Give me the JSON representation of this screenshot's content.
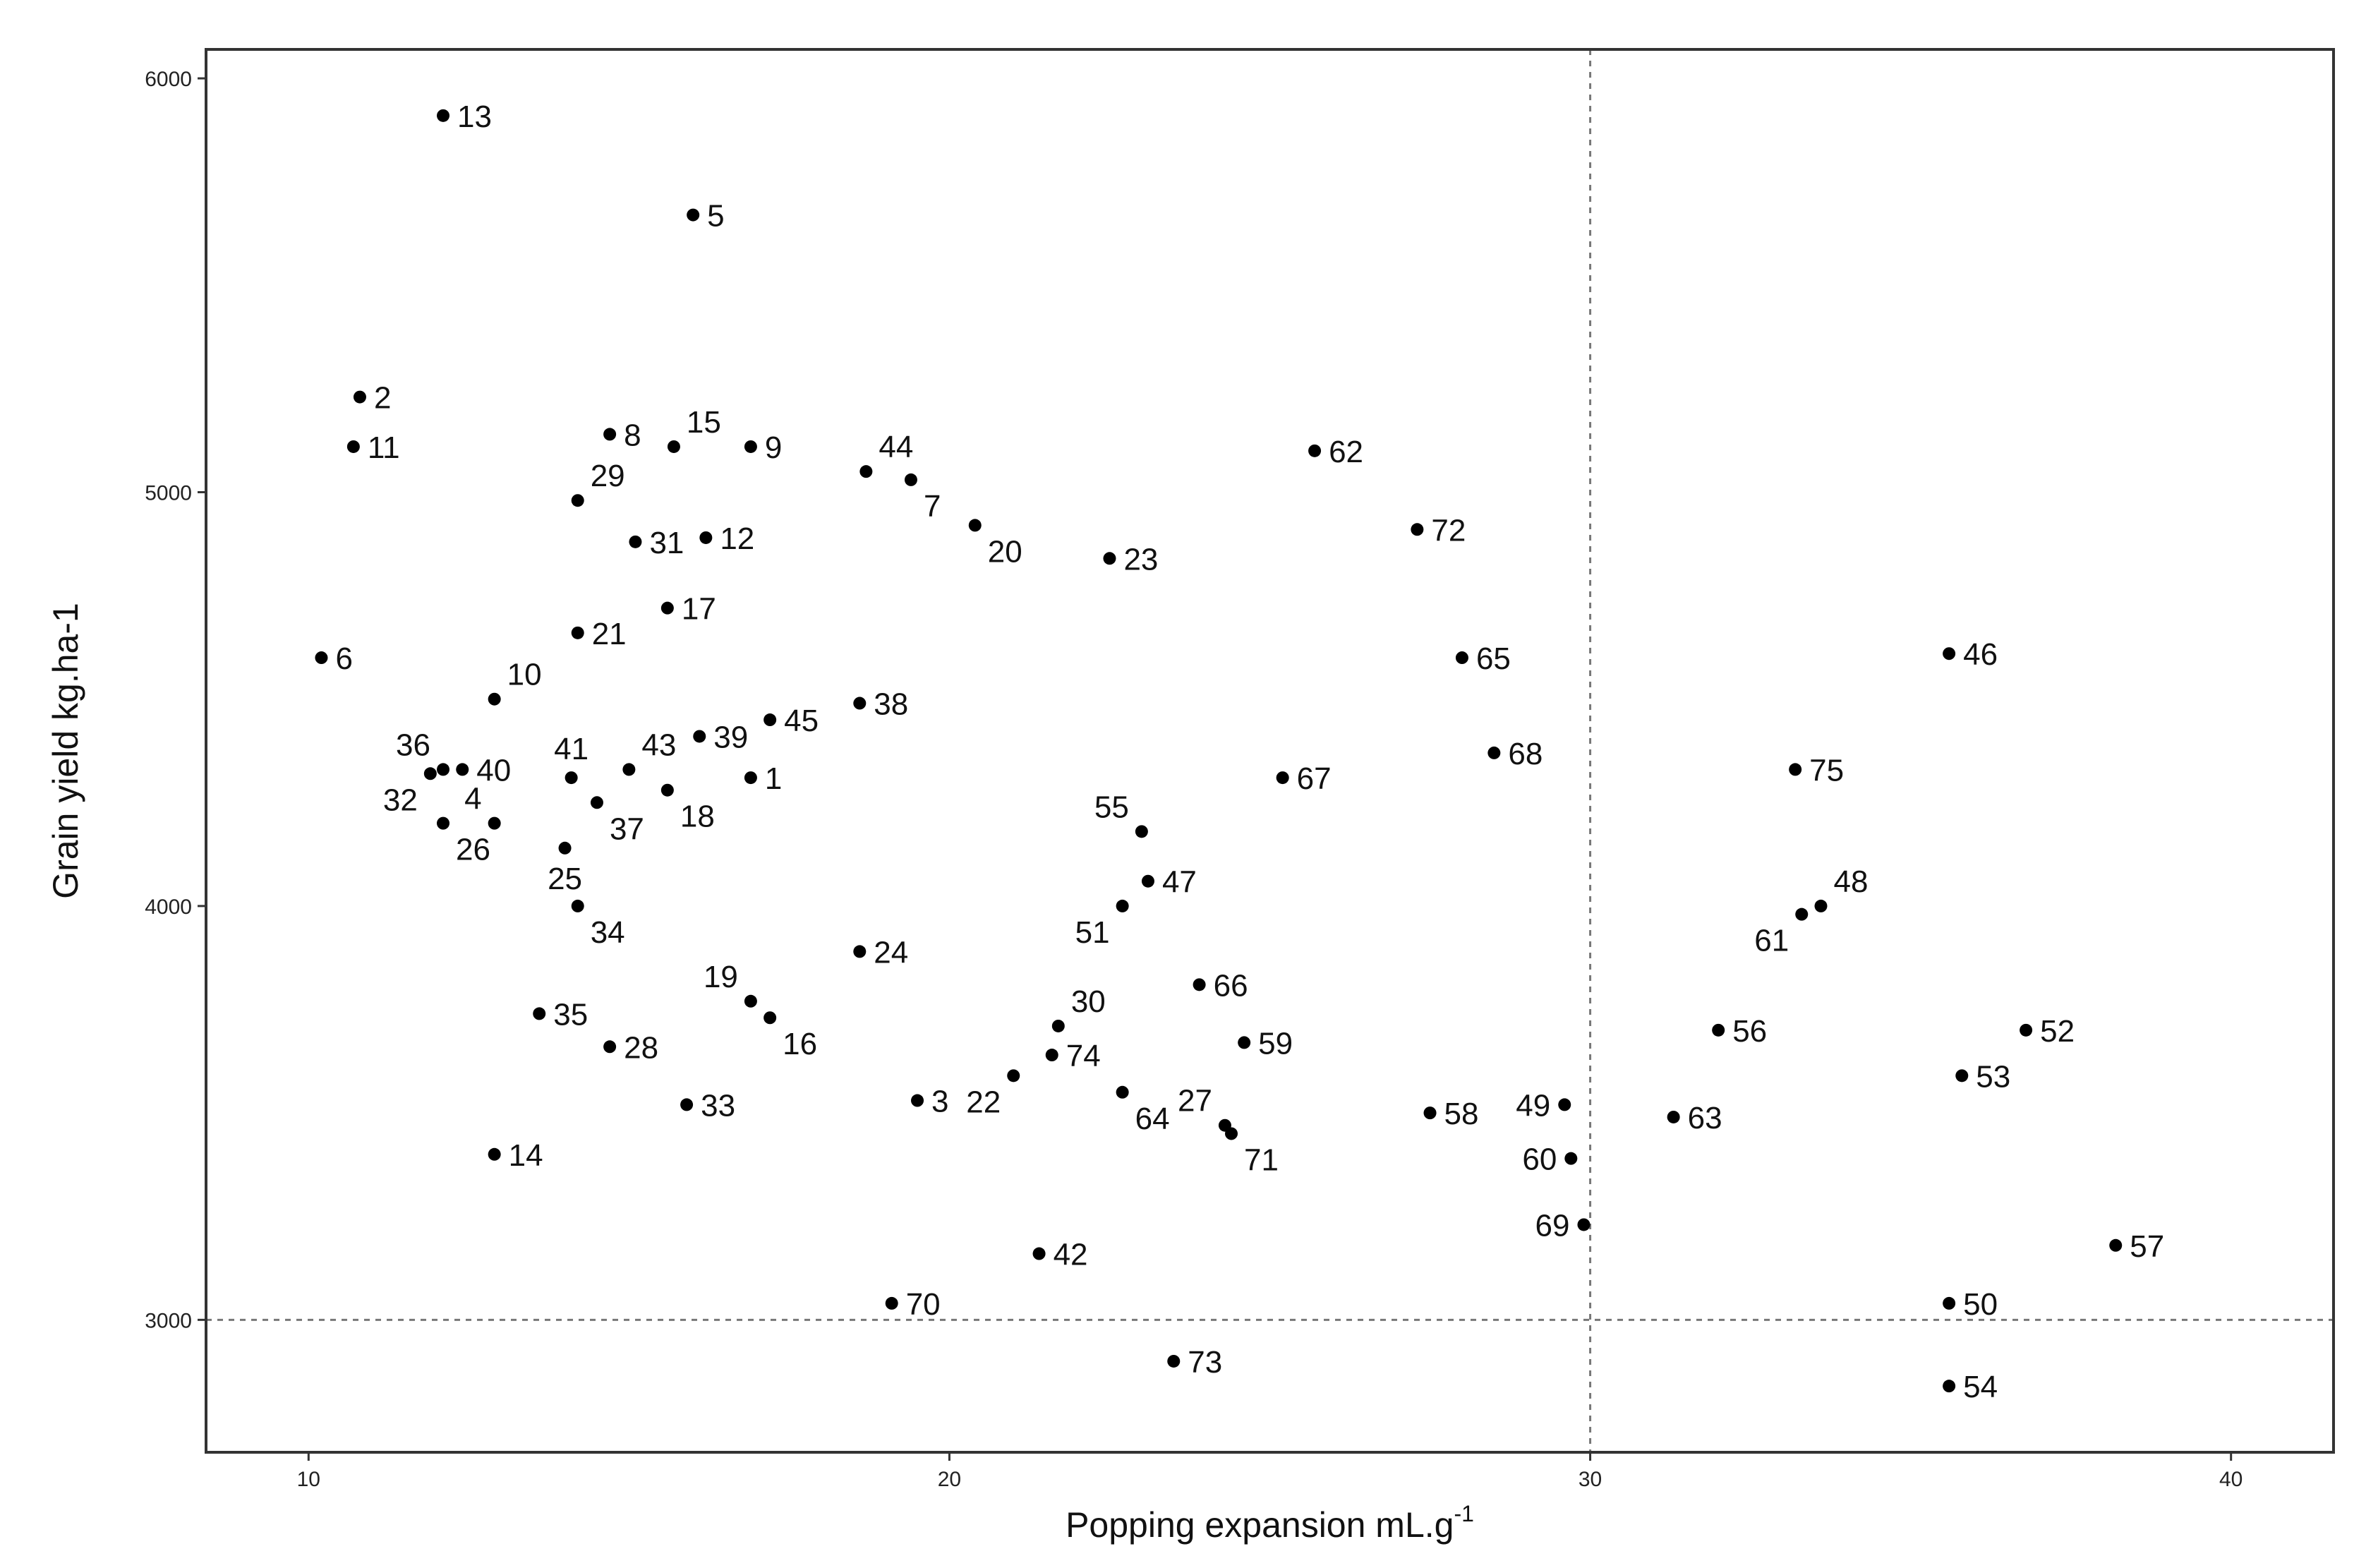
{
  "chart_data": {
    "type": "scatter",
    "xlabel": "Popping expansion mL.g",
    "xlabel_superscript": "-1",
    "ylabel": "Grain yield kg.ha-1",
    "xlim": [
      8.4,
      41.6
    ],
    "ylim": [
      2680,
      6070
    ],
    "xticks": [
      10,
      20,
      30,
      40
    ],
    "yticks": [
      3000,
      4000,
      5000,
      6000
    ],
    "reference_lines": {
      "x": 30,
      "y": 3000
    },
    "grid": false,
    "point_color": "#000000",
    "points": [
      {
        "label": "1",
        "x": 16.9,
        "y": 4310,
        "pos": "right"
      },
      {
        "label": "2",
        "x": 10.8,
        "y": 5230,
        "pos": "right"
      },
      {
        "label": "3",
        "x": 19.5,
        "y": 3530,
        "pos": "right"
      },
      {
        "label": "4",
        "x": 12.9,
        "y": 4200,
        "pos": "topleft"
      },
      {
        "label": "5",
        "x": 16.0,
        "y": 5670,
        "pos": "right"
      },
      {
        "label": "6",
        "x": 10.2,
        "y": 4600,
        "pos": "right"
      },
      {
        "label": "7",
        "x": 19.4,
        "y": 5030,
        "pos": "bottomright"
      },
      {
        "label": "8",
        "x": 14.7,
        "y": 5140,
        "pos": "right"
      },
      {
        "label": "9",
        "x": 16.9,
        "y": 5110,
        "pos": "right"
      },
      {
        "label": "10",
        "x": 12.9,
        "y": 4500,
        "pos": "topright"
      },
      {
        "label": "11",
        "x": 10.7,
        "y": 5110,
        "pos": "right"
      },
      {
        "label": "12",
        "x": 16.2,
        "y": 4890,
        "pos": "right"
      },
      {
        "label": "13",
        "x": 12.1,
        "y": 5910,
        "pos": "right"
      },
      {
        "label": "14",
        "x": 12.9,
        "y": 3400,
        "pos": "right"
      },
      {
        "label": "15",
        "x": 15.7,
        "y": 5110,
        "pos": "topright"
      },
      {
        "label": "16",
        "x": 17.2,
        "y": 3730,
        "pos": "bottomright"
      },
      {
        "label": "17",
        "x": 15.6,
        "y": 4720,
        "pos": "right"
      },
      {
        "label": "18",
        "x": 15.6,
        "y": 4280,
        "pos": "bottomright"
      },
      {
        "label": "19",
        "x": 16.9,
        "y": 3770,
        "pos": "topleft"
      },
      {
        "label": "20",
        "x": 20.4,
        "y": 4920,
        "pos": "bottomright"
      },
      {
        "label": "21",
        "x": 14.2,
        "y": 4660,
        "pos": "right"
      },
      {
        "label": "22",
        "x": 21.0,
        "y": 3590,
        "pos": "bottomleft"
      },
      {
        "label": "23",
        "x": 22.5,
        "y": 4840,
        "pos": "right"
      },
      {
        "label": "24",
        "x": 18.6,
        "y": 3890,
        "pos": "right"
      },
      {
        "label": "25",
        "x": 14.0,
        "y": 4140,
        "pos": "bottom"
      },
      {
        "label": "26",
        "x": 12.1,
        "y": 4200,
        "pos": "bottomright"
      },
      {
        "label": "27",
        "x": 24.3,
        "y": 3470,
        "pos": "topleft"
      },
      {
        "label": "28",
        "x": 14.7,
        "y": 3660,
        "pos": "right"
      },
      {
        "label": "29",
        "x": 14.2,
        "y": 4980,
        "pos": "topright"
      },
      {
        "label": "30",
        "x": 21.7,
        "y": 3710,
        "pos": "topright"
      },
      {
        "label": "31",
        "x": 15.1,
        "y": 4880,
        "pos": "right"
      },
      {
        "label": "32",
        "x": 11.9,
        "y": 4320,
        "pos": "bottomleft"
      },
      {
        "label": "33",
        "x": 15.9,
        "y": 3520,
        "pos": "right"
      },
      {
        "label": "34",
        "x": 14.2,
        "y": 4000,
        "pos": "bottomright"
      },
      {
        "label": "35",
        "x": 13.6,
        "y": 3740,
        "pos": "right"
      },
      {
        "label": "36",
        "x": 12.1,
        "y": 4330,
        "pos": "topleft"
      },
      {
        "label": "37",
        "x": 14.5,
        "y": 4250,
        "pos": "bottomright"
      },
      {
        "label": "38",
        "x": 18.6,
        "y": 4490,
        "pos": "right"
      },
      {
        "label": "39",
        "x": 16.1,
        "y": 4410,
        "pos": "right"
      },
      {
        "label": "40",
        "x": 12.4,
        "y": 4330,
        "pos": "right"
      },
      {
        "label": "41",
        "x": 14.1,
        "y": 4310,
        "pos": "top"
      },
      {
        "label": "42",
        "x": 21.4,
        "y": 3160,
        "pos": "right"
      },
      {
        "label": "43",
        "x": 15.0,
        "y": 4330,
        "pos": "topright"
      },
      {
        "label": "44",
        "x": 18.7,
        "y": 5050,
        "pos": "topright"
      },
      {
        "label": "45",
        "x": 17.2,
        "y": 4450,
        "pos": "right"
      },
      {
        "label": "46",
        "x": 35.6,
        "y": 4610,
        "pos": "right"
      },
      {
        "label": "47",
        "x": 23.1,
        "y": 4060,
        "pos": "right"
      },
      {
        "label": "48",
        "x": 33.6,
        "y": 4000,
        "pos": "topright"
      },
      {
        "label": "49",
        "x": 29.6,
        "y": 3520,
        "pos": "left"
      },
      {
        "label": "50",
        "x": 35.6,
        "y": 3040,
        "pos": "right"
      },
      {
        "label": "51",
        "x": 22.7,
        "y": 4000,
        "pos": "bottomleft"
      },
      {
        "label": "52",
        "x": 36.8,
        "y": 3700,
        "pos": "right"
      },
      {
        "label": "53",
        "x": 35.8,
        "y": 3590,
        "pos": "right"
      },
      {
        "label": "54",
        "x": 35.6,
        "y": 2840,
        "pos": "right"
      },
      {
        "label": "55",
        "x": 23.0,
        "y": 4180,
        "pos": "topleft"
      },
      {
        "label": "56",
        "x": 32.0,
        "y": 3700,
        "pos": "right"
      },
      {
        "label": "57",
        "x": 38.2,
        "y": 3180,
        "pos": "right"
      },
      {
        "label": "58",
        "x": 27.5,
        "y": 3500,
        "pos": "right"
      },
      {
        "label": "59",
        "x": 24.6,
        "y": 3670,
        "pos": "right"
      },
      {
        "label": "60",
        "x": 29.7,
        "y": 3390,
        "pos": "left"
      },
      {
        "label": "61",
        "x": 33.3,
        "y": 3980,
        "pos": "bottomleft"
      },
      {
        "label": "62",
        "x": 25.7,
        "y": 5100,
        "pos": "right"
      },
      {
        "label": "63",
        "x": 31.3,
        "y": 3490,
        "pos": "right"
      },
      {
        "label": "64",
        "x": 22.7,
        "y": 3550,
        "pos": "bottomright"
      },
      {
        "label": "65",
        "x": 28.0,
        "y": 4600,
        "pos": "right"
      },
      {
        "label": "66",
        "x": 23.9,
        "y": 3810,
        "pos": "right"
      },
      {
        "label": "67",
        "x": 25.2,
        "y": 4310,
        "pos": "right"
      },
      {
        "label": "68",
        "x": 28.5,
        "y": 4370,
        "pos": "right"
      },
      {
        "label": "69",
        "x": 29.9,
        "y": 3230,
        "pos": "left"
      },
      {
        "label": "70",
        "x": 19.1,
        "y": 3040,
        "pos": "right"
      },
      {
        "label": "71",
        "x": 24.4,
        "y": 3450,
        "pos": "bottomright"
      },
      {
        "label": "72",
        "x": 27.3,
        "y": 4910,
        "pos": "right"
      },
      {
        "label": "73",
        "x": 23.5,
        "y": 2900,
        "pos": "right"
      },
      {
        "label": "74",
        "x": 21.6,
        "y": 3640,
        "pos": "right"
      },
      {
        "label": "75",
        "x": 33.2,
        "y": 4330,
        "pos": "right"
      }
    ]
  }
}
